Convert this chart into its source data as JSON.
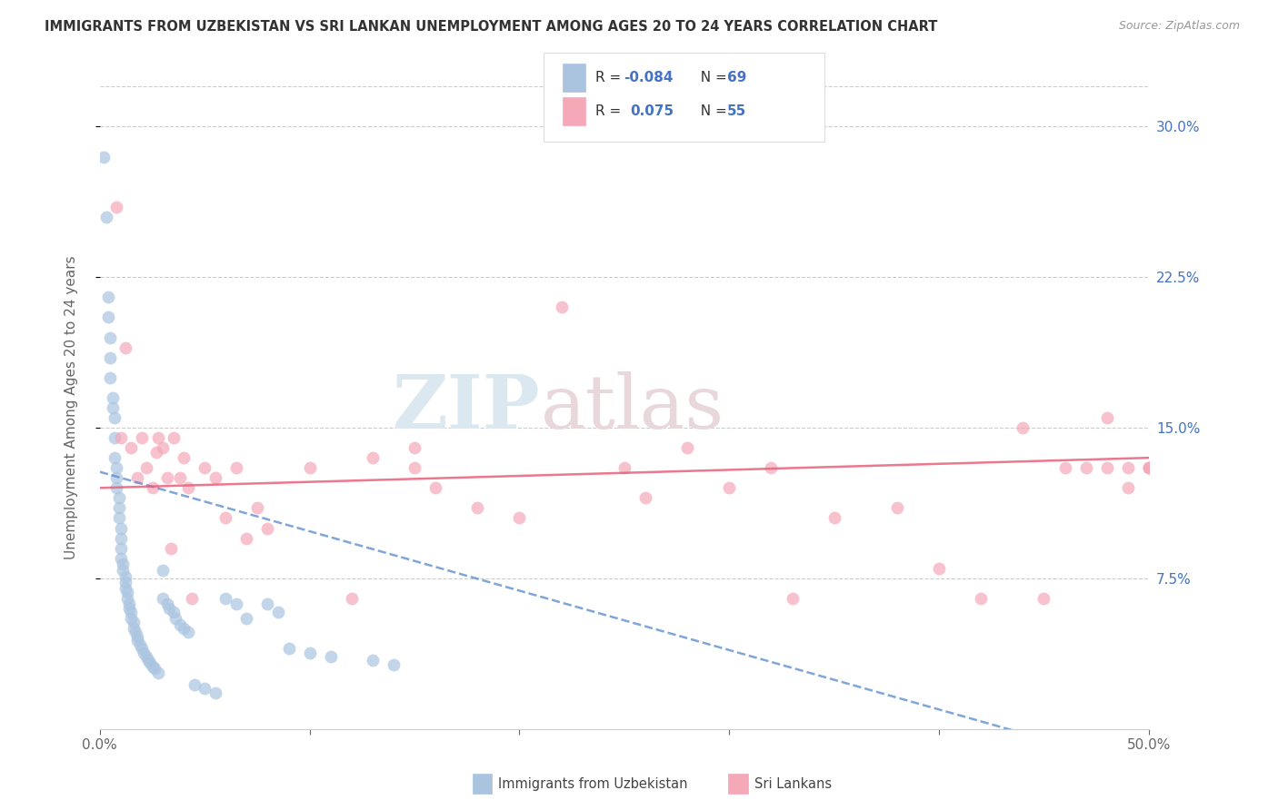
{
  "title": "IMMIGRANTS FROM UZBEKISTAN VS SRI LANKAN UNEMPLOYMENT AMONG AGES 20 TO 24 YEARS CORRELATION CHART",
  "source": "Source: ZipAtlas.com",
  "ylabel": "Unemployment Among Ages 20 to 24 years",
  "yticks_labels": [
    "30.0%",
    "22.5%",
    "15.0%",
    "7.5%"
  ],
  "ytick_vals": [
    0.3,
    0.225,
    0.15,
    0.075
  ],
  "xlim": [
    0.0,
    0.5
  ],
  "ylim": [
    0.0,
    0.32
  ],
  "uzbekistan_color": "#aac4e0",
  "srilankan_color": "#f4a8b8",
  "uzbekistan_line_color": "#5588cc",
  "srilankan_line_color": "#e8607a",
  "watermark_zip": "ZIP",
  "watermark_atlas": "atlas",
  "legend_r1_label": "R = ",
  "legend_r1_val": "-0.084",
  "legend_n1_label": "N = ",
  "legend_n1_val": "69",
  "legend_r2_label": "R =  ",
  "legend_r2_val": "0.075",
  "legend_n2_label": "N = ",
  "legend_n2_val": "55",
  "uz_x": [
    0.002,
    0.003,
    0.004,
    0.004,
    0.005,
    0.005,
    0.005,
    0.006,
    0.006,
    0.007,
    0.007,
    0.007,
    0.008,
    0.008,
    0.008,
    0.009,
    0.009,
    0.009,
    0.01,
    0.01,
    0.01,
    0.01,
    0.011,
    0.011,
    0.012,
    0.012,
    0.012,
    0.013,
    0.013,
    0.014,
    0.014,
    0.015,
    0.015,
    0.016,
    0.016,
    0.017,
    0.018,
    0.018,
    0.019,
    0.02,
    0.021,
    0.022,
    0.023,
    0.024,
    0.025,
    0.026,
    0.028,
    0.03,
    0.03,
    0.032,
    0.033,
    0.035,
    0.036,
    0.038,
    0.04,
    0.042,
    0.045,
    0.05,
    0.055,
    0.06,
    0.065,
    0.07,
    0.08,
    0.085,
    0.09,
    0.1,
    0.11,
    0.13,
    0.14
  ],
  "uz_y": [
    0.285,
    0.255,
    0.215,
    0.205,
    0.195,
    0.185,
    0.175,
    0.165,
    0.16,
    0.155,
    0.145,
    0.135,
    0.13,
    0.125,
    0.12,
    0.115,
    0.11,
    0.105,
    0.1,
    0.095,
    0.09,
    0.085,
    0.082,
    0.079,
    0.076,
    0.073,
    0.07,
    0.068,
    0.065,
    0.062,
    0.06,
    0.058,
    0.055,
    0.053,
    0.05,
    0.048,
    0.046,
    0.044,
    0.042,
    0.04,
    0.038,
    0.036,
    0.034,
    0.033,
    0.031,
    0.03,
    0.028,
    0.079,
    0.065,
    0.062,
    0.06,
    0.058,
    0.055,
    0.052,
    0.05,
    0.048,
    0.022,
    0.02,
    0.018,
    0.065,
    0.062,
    0.055,
    0.062,
    0.058,
    0.04,
    0.038,
    0.036,
    0.034,
    0.032
  ],
  "sl_x": [
    0.008,
    0.01,
    0.012,
    0.015,
    0.018,
    0.02,
    0.022,
    0.025,
    0.027,
    0.028,
    0.03,
    0.032,
    0.034,
    0.035,
    0.038,
    0.04,
    0.042,
    0.044,
    0.05,
    0.055,
    0.06,
    0.065,
    0.07,
    0.075,
    0.08,
    0.1,
    0.12,
    0.13,
    0.15,
    0.15,
    0.16,
    0.18,
    0.2,
    0.22,
    0.25,
    0.26,
    0.28,
    0.3,
    0.32,
    0.33,
    0.35,
    0.38,
    0.4,
    0.42,
    0.44,
    0.45,
    0.46,
    0.47,
    0.48,
    0.48,
    0.49,
    0.49,
    0.5,
    0.5,
    0.5
  ],
  "sl_y": [
    0.26,
    0.145,
    0.19,
    0.14,
    0.125,
    0.145,
    0.13,
    0.12,
    0.138,
    0.145,
    0.14,
    0.125,
    0.09,
    0.145,
    0.125,
    0.135,
    0.12,
    0.065,
    0.13,
    0.125,
    0.105,
    0.13,
    0.095,
    0.11,
    0.1,
    0.13,
    0.065,
    0.135,
    0.13,
    0.14,
    0.12,
    0.11,
    0.105,
    0.21,
    0.13,
    0.115,
    0.14,
    0.12,
    0.13,
    0.065,
    0.105,
    0.11,
    0.08,
    0.065,
    0.15,
    0.065,
    0.13,
    0.13,
    0.13,
    0.155,
    0.13,
    0.12,
    0.13,
    0.13,
    0.13
  ]
}
